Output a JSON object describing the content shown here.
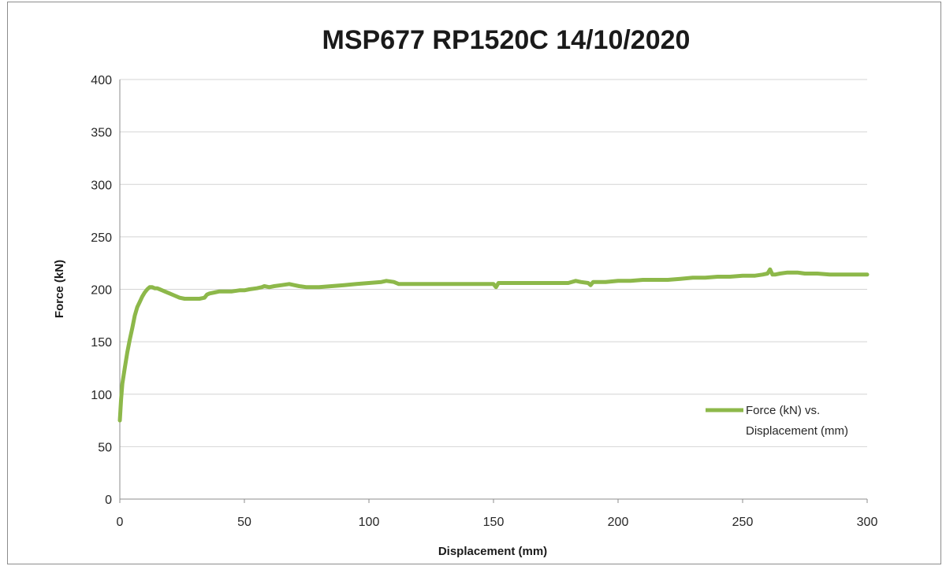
{
  "chart_data": {
    "type": "line",
    "title": "MSP677 RP1520C 14/10/2020",
    "xlabel": "Displacement (mm)",
    "ylabel": "Force (kN)",
    "xlim": [
      0,
      300
    ],
    "ylim": [
      0,
      400
    ],
    "x_ticks": [
      0,
      50,
      100,
      150,
      200,
      250,
      300
    ],
    "y_ticks": [
      0,
      50,
      100,
      150,
      200,
      250,
      300,
      350,
      400
    ],
    "grid": "horizontal",
    "legend_position": "bottom-right",
    "series": [
      {
        "name": "Force (kN) vs. Displacement (mm)",
        "color": "#8db84a",
        "x": [
          0,
          0.5,
          1,
          2,
          3,
          4,
          5,
          6,
          7,
          8,
          9,
          10,
          11,
          12,
          13,
          14,
          15,
          16,
          17,
          18,
          20,
          22,
          24,
          26,
          28,
          30,
          32,
          34,
          35,
          36,
          38,
          40,
          42,
          45,
          48,
          50,
          52,
          55,
          57,
          58,
          60,
          62,
          65,
          68,
          70,
          72,
          75,
          78,
          80,
          85,
          90,
          95,
          100,
          105,
          107,
          110,
          112,
          115,
          120,
          125,
          130,
          135,
          140,
          145,
          150,
          151,
          152,
          155,
          160,
          165,
          170,
          175,
          180,
          183,
          185,
          188,
          189,
          190,
          195,
          200,
          205,
          210,
          215,
          220,
          225,
          230,
          235,
          240,
          245,
          250,
          255,
          258,
          260,
          261,
          262,
          263,
          265,
          268,
          270,
          272,
          275,
          280,
          285,
          290,
          295,
          300
        ],
        "y": [
          75,
          95,
          110,
          125,
          140,
          152,
          163,
          175,
          183,
          188,
          193,
          197,
          200,
          202,
          202,
          201,
          201,
          200,
          199,
          198,
          196,
          194,
          192,
          191,
          191,
          191,
          191,
          192,
          195,
          196,
          197,
          198,
          198,
          198,
          199,
          199,
          200,
          201,
          202,
          203,
          202,
          203,
          204,
          205,
          204,
          203,
          202,
          202,
          202,
          203,
          204,
          205,
          206,
          207,
          208,
          207,
          205,
          205,
          205,
          205,
          205,
          205,
          205,
          205,
          205,
          202,
          206,
          206,
          206,
          206,
          206,
          206,
          206,
          208,
          207,
          206,
          204,
          207,
          207,
          208,
          208,
          209,
          209,
          209,
          210,
          211,
          211,
          212,
          212,
          213,
          213,
          214,
          215,
          219,
          214,
          214,
          215,
          216,
          216,
          216,
          215,
          215,
          214,
          214,
          214,
          214
        ]
      }
    ]
  }
}
